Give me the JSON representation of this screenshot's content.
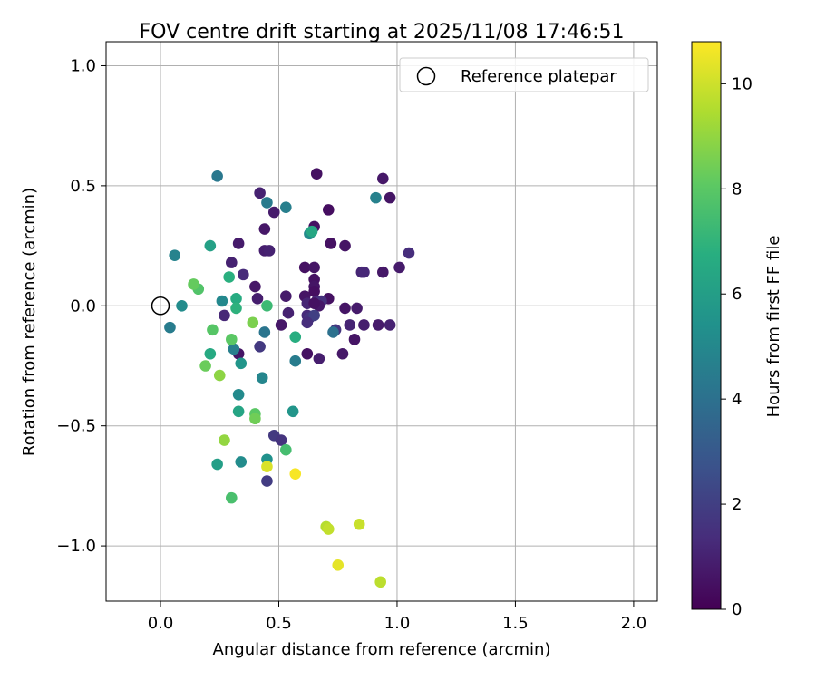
{
  "chart_data": {
    "type": "scatter",
    "title": "FOV centre drift starting at 2025/11/08 17:46:51",
    "xlabel": "Angular distance from reference (arcmin)",
    "ylabel": "Rotation from reference (arcmin)",
    "xlim": [
      -0.23,
      2.1
    ],
    "ylim": [
      -1.23,
      1.1
    ],
    "xticks": [
      0.0,
      0.5,
      1.0,
      1.5,
      2.0
    ],
    "xtick_labels": [
      "0.0",
      "0.5",
      "1.0",
      "1.5",
      "2.0"
    ],
    "yticks": [
      1.0,
      0.5,
      0.0,
      -0.5,
      -1.0
    ],
    "ytick_labels": [
      "1.0",
      "0.5",
      "0.0",
      "−0.5",
      "−1.0"
    ],
    "grid": true,
    "legend": {
      "position": "top-right",
      "entries": [
        "Reference platepar"
      ]
    },
    "reference_point": {
      "x": 0.0,
      "y": 0.0
    },
    "colorbar": {
      "label": "Hours from first FF file",
      "range": [
        0,
        10.8
      ],
      "ticks": [
        0,
        2,
        4,
        6,
        8,
        10
      ],
      "colormap": "viridis"
    },
    "points": [
      {
        "x": 0.66,
        "y": 0.55,
        "h": 0.5
      },
      {
        "x": 0.94,
        "y": 0.53,
        "h": 0.7
      },
      {
        "x": 0.42,
        "y": 0.47,
        "h": 1.0
      },
      {
        "x": 0.97,
        "y": 0.45,
        "h": 0.6
      },
      {
        "x": 0.48,
        "y": 0.39,
        "h": 0.8
      },
      {
        "x": 0.71,
        "y": 0.4,
        "h": 0.4
      },
      {
        "x": 0.65,
        "y": 0.33,
        "h": 0.5
      },
      {
        "x": 0.44,
        "y": 0.32,
        "h": 0.7
      },
      {
        "x": 0.33,
        "y": 0.26,
        "h": 0.8
      },
      {
        "x": 0.72,
        "y": 0.26,
        "h": 0.5
      },
      {
        "x": 0.78,
        "y": 0.25,
        "h": 0.6
      },
      {
        "x": 0.44,
        "y": 0.23,
        "h": 0.9
      },
      {
        "x": 0.46,
        "y": 0.23,
        "h": 1.0
      },
      {
        "x": 1.05,
        "y": 0.22,
        "h": 1.4
      },
      {
        "x": 0.3,
        "y": 0.18,
        "h": 1.0
      },
      {
        "x": 0.61,
        "y": 0.16,
        "h": 0.5
      },
      {
        "x": 0.65,
        "y": 0.16,
        "h": 0.6
      },
      {
        "x": 1.01,
        "y": 0.16,
        "h": 0.8
      },
      {
        "x": 0.85,
        "y": 0.14,
        "h": 1.1
      },
      {
        "x": 0.86,
        "y": 0.14,
        "h": 1.2
      },
      {
        "x": 0.94,
        "y": 0.14,
        "h": 0.7
      },
      {
        "x": 0.35,
        "y": 0.13,
        "h": 1.3
      },
      {
        "x": 0.65,
        "y": 0.11,
        "h": 0.5
      },
      {
        "x": 0.65,
        "y": 0.08,
        "h": 0.6
      },
      {
        "x": 0.4,
        "y": 0.08,
        "h": 0.7
      },
      {
        "x": 0.65,
        "y": 0.06,
        "h": 0.4
      },
      {
        "x": 0.53,
        "y": 0.04,
        "h": 0.8
      },
      {
        "x": 0.61,
        "y": 0.04,
        "h": 0.6
      },
      {
        "x": 0.71,
        "y": 0.03,
        "h": 0.5
      },
      {
        "x": 0.41,
        "y": 0.03,
        "h": 0.9
      },
      {
        "x": 0.66,
        "y": 0.02,
        "h": 1.2
      },
      {
        "x": 0.68,
        "y": 0.02,
        "h": 1.5
      },
      {
        "x": 0.62,
        "y": 0.01,
        "h": 1.1
      },
      {
        "x": 0.67,
        "y": 0.0,
        "h": 0.7
      },
      {
        "x": 0.65,
        "y": 0.01,
        "h": 0.5
      },
      {
        "x": 0.78,
        "y": -0.01,
        "h": 0.6
      },
      {
        "x": 0.83,
        "y": -0.01,
        "h": 0.8
      },
      {
        "x": 0.54,
        "y": -0.03,
        "h": 1.0
      },
      {
        "x": 0.27,
        "y": -0.04,
        "h": 1.2
      },
      {
        "x": 0.62,
        "y": -0.04,
        "h": 1.3
      },
      {
        "x": 0.63,
        "y": -0.05,
        "h": 1.6
      },
      {
        "x": 0.65,
        "y": -0.04,
        "h": 2.0
      },
      {
        "x": 0.62,
        "y": -0.07,
        "h": 1.4
      },
      {
        "x": 0.51,
        "y": -0.08,
        "h": 0.7
      },
      {
        "x": 0.8,
        "y": -0.08,
        "h": 1.1
      },
      {
        "x": 0.86,
        "y": -0.08,
        "h": 0.9
      },
      {
        "x": 0.92,
        "y": -0.08,
        "h": 0.8
      },
      {
        "x": 0.97,
        "y": -0.08,
        "h": 1.0
      },
      {
        "x": 0.74,
        "y": -0.1,
        "h": 1.7
      },
      {
        "x": 0.82,
        "y": -0.14,
        "h": 0.6
      },
      {
        "x": 0.42,
        "y": -0.17,
        "h": 1.8
      },
      {
        "x": 0.62,
        "y": -0.2,
        "h": 0.5
      },
      {
        "x": 0.77,
        "y": -0.2,
        "h": 0.7
      },
      {
        "x": 0.67,
        "y": -0.22,
        "h": 0.9
      },
      {
        "x": 0.33,
        "y": -0.2,
        "h": 0.6
      },
      {
        "x": 0.48,
        "y": -0.54,
        "h": 1.8
      },
      {
        "x": 0.51,
        "y": -0.56,
        "h": 1.6
      },
      {
        "x": 0.45,
        "y": -0.73,
        "h": 1.9
      },
      {
        "x": 0.24,
        "y": 0.54,
        "h": 4.3
      },
      {
        "x": 0.45,
        "y": 0.43,
        "h": 4.4
      },
      {
        "x": 0.53,
        "y": 0.41,
        "h": 4.6
      },
      {
        "x": 0.91,
        "y": 0.45,
        "h": 4.7
      },
      {
        "x": 0.63,
        "y": 0.3,
        "h": 5.1
      },
      {
        "x": 0.06,
        "y": 0.21,
        "h": 4.8
      },
      {
        "x": 0.26,
        "y": 0.02,
        "h": 5.0
      },
      {
        "x": 0.09,
        "y": 0.0,
        "h": 5.2
      },
      {
        "x": 0.04,
        "y": -0.09,
        "h": 4.5
      },
      {
        "x": 0.44,
        "y": -0.11,
        "h": 4.2
      },
      {
        "x": 0.73,
        "y": -0.11,
        "h": 4.0
      },
      {
        "x": 0.31,
        "y": -0.18,
        "h": 4.6
      },
      {
        "x": 0.57,
        "y": -0.23,
        "h": 4.5
      },
      {
        "x": 0.43,
        "y": -0.3,
        "h": 4.9
      },
      {
        "x": 0.33,
        "y": -0.37,
        "h": 5.1
      },
      {
        "x": 0.34,
        "y": -0.24,
        "h": 5.6
      },
      {
        "x": 0.34,
        "y": -0.65,
        "h": 5.2
      },
      {
        "x": 0.45,
        "y": -0.64,
        "h": 5.4
      },
      {
        "x": 0.56,
        "y": -0.44,
        "h": 5.6
      },
      {
        "x": 0.21,
        "y": 0.25,
        "h": 6.1
      },
      {
        "x": 0.64,
        "y": 0.31,
        "h": 6.4
      },
      {
        "x": 0.29,
        "y": 0.12,
        "h": 6.8
      },
      {
        "x": 0.32,
        "y": 0.03,
        "h": 6.6
      },
      {
        "x": 0.32,
        "y": -0.01,
        "h": 6.9
      },
      {
        "x": 0.45,
        "y": 0.0,
        "h": 7.3
      },
      {
        "x": 0.57,
        "y": -0.13,
        "h": 6.7
      },
      {
        "x": 0.21,
        "y": -0.2,
        "h": 6.5
      },
      {
        "x": 0.33,
        "y": -0.44,
        "h": 6.3
      },
      {
        "x": 0.24,
        "y": -0.66,
        "h": 6.0
      },
      {
        "x": 0.3,
        "y": -0.8,
        "h": 7.6
      },
      {
        "x": 0.53,
        "y": -0.6,
        "h": 7.5
      },
      {
        "x": 0.16,
        "y": 0.07,
        "h": 7.8
      },
      {
        "x": 0.14,
        "y": 0.09,
        "h": 8.2
      },
      {
        "x": 0.22,
        "y": -0.1,
        "h": 7.9
      },
      {
        "x": 0.3,
        "y": -0.14,
        "h": 8.0
      },
      {
        "x": 0.19,
        "y": -0.25,
        "h": 8.3
      },
      {
        "x": 0.4,
        "y": -0.45,
        "h": 8.0
      },
      {
        "x": 0.4,
        "y": -0.47,
        "h": 8.4
      },
      {
        "x": 0.39,
        "y": -0.07,
        "h": 8.6
      },
      {
        "x": 0.25,
        "y": -0.29,
        "h": 8.9
      },
      {
        "x": 0.27,
        "y": -0.56,
        "h": 9.0
      },
      {
        "x": 0.45,
        "y": -0.67,
        "h": 10.2
      },
      {
        "x": 0.57,
        "y": -0.7,
        "h": 10.7
      },
      {
        "x": 0.7,
        "y": -0.92,
        "h": 9.6
      },
      {
        "x": 0.71,
        "y": -0.93,
        "h": 9.8
      },
      {
        "x": 0.84,
        "y": -0.91,
        "h": 9.9
      },
      {
        "x": 0.75,
        "y": -1.08,
        "h": 10.4
      },
      {
        "x": 0.93,
        "y": -1.15,
        "h": 9.7
      }
    ]
  }
}
